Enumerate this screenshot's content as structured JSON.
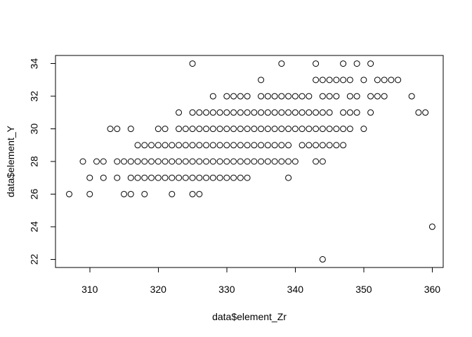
{
  "chart_data": {
    "type": "scatter",
    "title": "",
    "xlabel": "data$element_Zr",
    "ylabel": "data$element_Y",
    "xlim": [
      305,
      361.6
    ],
    "ylim": [
      21.5,
      34.5
    ],
    "x_ticks": [
      310,
      320,
      330,
      340,
      350,
      360
    ],
    "y_ticks": [
      22,
      24,
      26,
      28,
      30,
      32,
      34
    ],
    "x_tick_labels": [
      "310",
      "320",
      "330",
      "340",
      "350",
      "360"
    ],
    "y_tick_labels": [
      "22",
      "24",
      "26",
      "28",
      "30",
      "32",
      "34"
    ],
    "grid": false,
    "marker": "open-circle",
    "marker_color": "#000000",
    "points": [
      [
        307,
        26
      ],
      [
        309,
        28
      ],
      [
        310,
        27
      ],
      [
        310,
        26
      ],
      [
        311,
        28
      ],
      [
        312,
        28
      ],
      [
        312,
        27
      ],
      [
        313,
        30
      ],
      [
        314,
        30
      ],
      [
        314,
        28
      ],
      [
        314,
        27
      ],
      [
        315,
        28
      ],
      [
        315,
        26
      ],
      [
        316,
        30
      ],
      [
        316,
        28
      ],
      [
        316,
        27
      ],
      [
        316,
        26
      ],
      [
        317,
        29
      ],
      [
        317,
        28
      ],
      [
        317,
        27
      ],
      [
        318,
        29
      ],
      [
        318,
        28
      ],
      [
        318,
        27
      ],
      [
        318,
        26
      ],
      [
        319,
        29
      ],
      [
        319,
        28
      ],
      [
        319,
        27
      ],
      [
        320,
        30
      ],
      [
        320,
        29
      ],
      [
        320,
        28
      ],
      [
        320,
        27
      ],
      [
        321,
        30
      ],
      [
        321,
        29
      ],
      [
        321,
        28
      ],
      [
        321,
        27
      ],
      [
        322,
        29
      ],
      [
        322,
        28
      ],
      [
        322,
        27
      ],
      [
        322,
        26
      ],
      [
        323,
        31
      ],
      [
        323,
        30
      ],
      [
        323,
        29
      ],
      [
        323,
        28
      ],
      [
        323,
        27
      ],
      [
        324,
        30
      ],
      [
        324,
        29
      ],
      [
        324,
        28
      ],
      [
        324,
        27
      ],
      [
        325,
        34
      ],
      [
        325,
        31
      ],
      [
        325,
        30
      ],
      [
        325,
        29
      ],
      [
        325,
        28
      ],
      [
        325,
        27
      ],
      [
        325,
        26
      ],
      [
        326,
        31
      ],
      [
        326,
        30
      ],
      [
        326,
        29
      ],
      [
        326,
        28
      ],
      [
        326,
        27
      ],
      [
        326,
        26
      ],
      [
        327,
        31
      ],
      [
        327,
        30
      ],
      [
        327,
        29
      ],
      [
        327,
        28
      ],
      [
        327,
        27
      ],
      [
        328,
        32
      ],
      [
        328,
        31
      ],
      [
        328,
        30
      ],
      [
        328,
        29
      ],
      [
        328,
        28
      ],
      [
        328,
        27
      ],
      [
        329,
        31
      ],
      [
        329,
        30
      ],
      [
        329,
        29
      ],
      [
        329,
        28
      ],
      [
        329,
        27
      ],
      [
        330,
        32
      ],
      [
        330,
        31
      ],
      [
        330,
        30
      ],
      [
        330,
        29
      ],
      [
        330,
        28
      ],
      [
        330,
        27
      ],
      [
        331,
        32
      ],
      [
        331,
        31
      ],
      [
        331,
        30
      ],
      [
        331,
        29
      ],
      [
        331,
        28
      ],
      [
        331,
        27
      ],
      [
        332,
        32
      ],
      [
        332,
        31
      ],
      [
        332,
        30
      ],
      [
        332,
        29
      ],
      [
        332,
        28
      ],
      [
        332,
        27
      ],
      [
        333,
        32
      ],
      [
        333,
        31
      ],
      [
        333,
        30
      ],
      [
        333,
        29
      ],
      [
        333,
        28
      ],
      [
        333,
        27
      ],
      [
        334,
        31
      ],
      [
        334,
        30
      ],
      [
        334,
        29
      ],
      [
        334,
        28
      ],
      [
        335,
        33
      ],
      [
        335,
        32
      ],
      [
        335,
        31
      ],
      [
        335,
        30
      ],
      [
        335,
        29
      ],
      [
        335,
        28
      ],
      [
        336,
        32
      ],
      [
        336,
        31
      ],
      [
        336,
        30
      ],
      [
        336,
        29
      ],
      [
        336,
        28
      ],
      [
        337,
        32
      ],
      [
        337,
        31
      ],
      [
        337,
        30
      ],
      [
        337,
        29
      ],
      [
        337,
        28
      ],
      [
        338,
        34
      ],
      [
        338,
        32
      ],
      [
        338,
        31
      ],
      [
        338,
        30
      ],
      [
        338,
        29
      ],
      [
        338,
        28
      ],
      [
        339,
        32
      ],
      [
        339,
        31
      ],
      [
        339,
        30
      ],
      [
        339,
        29
      ],
      [
        339,
        28
      ],
      [
        339,
        27
      ],
      [
        340,
        32
      ],
      [
        340,
        31
      ],
      [
        340,
        30
      ],
      [
        340,
        28
      ],
      [
        341,
        32
      ],
      [
        341,
        31
      ],
      [
        341,
        30
      ],
      [
        341,
        29
      ],
      [
        342,
        32
      ],
      [
        342,
        31
      ],
      [
        342,
        30
      ],
      [
        342,
        29
      ],
      [
        343,
        34
      ],
      [
        343,
        33
      ],
      [
        343,
        31
      ],
      [
        343,
        30
      ],
      [
        343,
        29
      ],
      [
        343,
        28
      ],
      [
        344,
        33
      ],
      [
        344,
        32
      ],
      [
        344,
        31
      ],
      [
        344,
        30
      ],
      [
        344,
        29
      ],
      [
        344,
        28
      ],
      [
        344,
        22
      ],
      [
        345,
        33
      ],
      [
        345,
        32
      ],
      [
        345,
        31
      ],
      [
        345,
        30
      ],
      [
        345,
        29
      ],
      [
        346,
        33
      ],
      [
        346,
        32
      ],
      [
        346,
        30
      ],
      [
        346,
        29
      ],
      [
        347,
        34
      ],
      [
        347,
        33
      ],
      [
        347,
        31
      ],
      [
        347,
        30
      ],
      [
        347,
        29
      ],
      [
        348,
        33
      ],
      [
        348,
        32
      ],
      [
        348,
        31
      ],
      [
        348,
        30
      ],
      [
        349,
        34
      ],
      [
        349,
        32
      ],
      [
        349,
        31
      ],
      [
        350,
        33
      ],
      [
        350,
        30
      ],
      [
        351,
        34
      ],
      [
        351,
        32
      ],
      [
        351,
        31
      ],
      [
        352,
        33
      ],
      [
        352,
        32
      ],
      [
        353,
        33
      ],
      [
        353,
        32
      ],
      [
        354,
        33
      ],
      [
        355,
        33
      ],
      [
        357,
        32
      ],
      [
        358,
        31
      ],
      [
        359,
        31
      ],
      [
        360,
        24
      ]
    ]
  }
}
